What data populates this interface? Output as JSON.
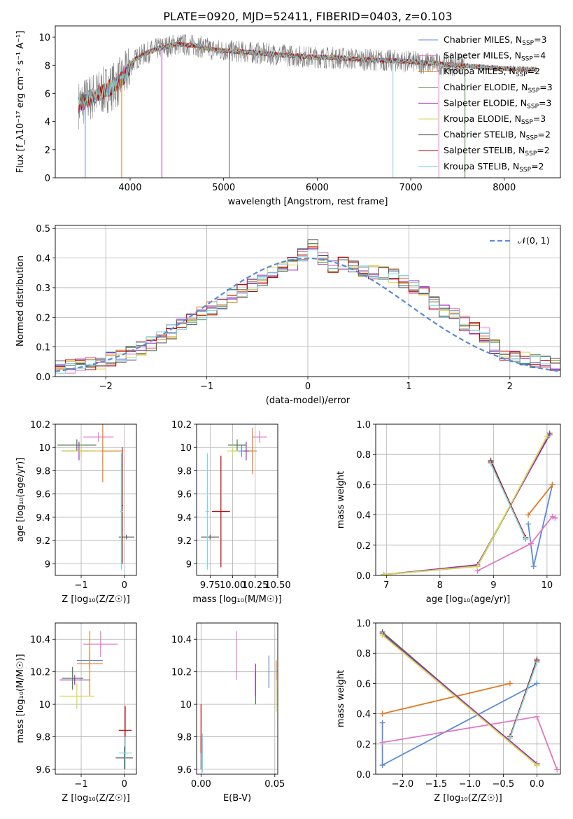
{
  "title": "PLATE=0920, MJD=52411, FIBERID=0403, z=0.103",
  "colors": [
    "#5b8bd6",
    "#e377c2",
    "#e07b1f",
    "#4a7a4a",
    "#9b30b5",
    "#d5d94c",
    "#555555",
    "#c00000",
    "#7fd6e0"
  ],
  "gray": "#808080",
  "chart_data": [
    {
      "id": "spectrum",
      "type": "line",
      "xlabel": "wavelength [Angstrom, rest frame]",
      "ylabel": "Flux [f_λ10⁻¹⁷ erg cm⁻² s⁻¹ A⁻¹]",
      "xlim": [
        3200,
        8600
      ],
      "ylim": [
        0,
        10.8
      ],
      "xticks": [
        4000,
        5000,
        6000,
        7000,
        8000
      ],
      "yticks": [
        0,
        2,
        4,
        6,
        8,
        10
      ],
      "grid": false,
      "legend_position": "top-right",
      "continuum": [
        [
          3450,
          5.2
        ],
        [
          3600,
          5.8
        ],
        [
          3750,
          6.3
        ],
        [
          3850,
          6.6
        ],
        [
          3950,
          7.3
        ],
        [
          4050,
          8.4
        ],
        [
          4150,
          8.8
        ],
        [
          4300,
          9.2
        ],
        [
          4500,
          9.5
        ],
        [
          4700,
          9.4
        ],
        [
          4900,
          9.1
        ],
        [
          5100,
          9.0
        ],
        [
          5300,
          8.9
        ],
        [
          5500,
          8.8
        ],
        [
          5700,
          8.7
        ],
        [
          5900,
          8.6
        ],
        [
          6100,
          8.55
        ],
        [
          6300,
          8.5
        ],
        [
          6500,
          8.4
        ],
        [
          6700,
          8.35
        ],
        [
          6900,
          8.3
        ],
        [
          7100,
          8.2
        ],
        [
          7300,
          8.1
        ],
        [
          7500,
          8.0
        ],
        [
          7700,
          7.9
        ],
        [
          7900,
          7.8
        ],
        [
          8100,
          7.75
        ],
        [
          8350,
          7.7
        ]
      ],
      "observed_range": [
        3450,
        7580
      ],
      "spikes": [
        3520,
        3910,
        4340,
        5060,
        6810,
        7300,
        7580
      ],
      "legend": [
        "Chabrier MILES, N_SSP=3",
        "Salpeter MILES, N_SSP=4",
        "Kroupa MILES, N_SSP=2",
        "Chabrier ELODIE, N_SSP=3",
        "Salpeter ELODIE, N_SSP=3",
        "Kroupa ELODIE, N_SSP=3",
        "Chabrier STELIB, N_SSP=2",
        "Salpeter STELIB, N_SSP=2",
        "Kroupa STELIB, N_SSP=2"
      ]
    },
    {
      "id": "residuals",
      "type": "line",
      "xlabel": "(data-model)/error",
      "ylabel": "Normed distribution",
      "xlim": [
        -2.5,
        2.5
      ],
      "ylim": [
        0,
        0.51
      ],
      "xticks": [
        -2,
        -1,
        0,
        1,
        2
      ],
      "yticks": [
        0.0,
        0.1,
        0.2,
        0.3,
        0.4,
        0.5
      ],
      "grid": true,
      "legend_position": "top-right",
      "gauss_label": "𝒩(0, 1)",
      "bin_width": 0.1,
      "bin_start": -2.5,
      "hist_base": [
        0.03,
        0.035,
        0.04,
        0.045,
        0.05,
        0.06,
        0.07,
        0.08,
        0.095,
        0.11,
        0.13,
        0.15,
        0.17,
        0.19,
        0.21,
        0.23,
        0.25,
        0.27,
        0.29,
        0.31,
        0.33,
        0.35,
        0.37,
        0.38,
        0.41,
        0.44,
        0.4,
        0.37,
        0.38,
        0.37,
        0.36,
        0.35,
        0.35,
        0.34,
        0.32,
        0.3,
        0.28,
        0.25,
        0.22,
        0.21,
        0.18,
        0.16,
        0.14,
        0.1,
        0.08,
        0.07,
        0.06,
        0.05,
        0.045,
        0.04
      ]
    },
    {
      "id": "age_vs_Z",
      "type": "scatter",
      "xlabel": "Z [log₁₀(Z/Z☉)]",
      "ylabel": "age  [log₁₀(age/yr)]",
      "xlim": [
        -1.6,
        0.28
      ],
      "ylim": [
        8.9,
        10.2
      ],
      "xticks": [
        -1,
        0
      ],
      "yticks": [
        9.0,
        9.2,
        9.4,
        9.6,
        9.8,
        10.0,
        10.2
      ],
      "grid": true,
      "points": [
        {
          "x": -1.0,
          "y": 9.97,
          "xe": 0.3,
          "ye": 0.05,
          "c": 0
        },
        {
          "x": -0.6,
          "y": 10.09,
          "xe": 0.35,
          "ye": 0.04,
          "c": 1
        },
        {
          "x": -0.5,
          "y": 9.97,
          "xe": 0.45,
          "ye": 0.27,
          "c": 2
        },
        {
          "x": -1.1,
          "y": 10.02,
          "xe": 0.45,
          "ye": 0.05,
          "c": 3
        },
        {
          "x": -1.05,
          "y": 9.97,
          "xe": 0.4,
          "ye": 0.08,
          "c": 4
        },
        {
          "x": -1.0,
          "y": 9.97,
          "xe": 0.45,
          "ye": 0.05,
          "c": 5
        },
        {
          "x": 0.05,
          "y": 9.23,
          "xe": 0.18,
          "ye": 0.02,
          "c": 6
        },
        {
          "x": -0.05,
          "y": 9.5,
          "xe": 0.02,
          "ye": 0.5,
          "c": 7
        },
        {
          "x": -0.07,
          "y": 9.45,
          "xe": 0.03,
          "ye": 0.5,
          "c": 8
        }
      ]
    },
    {
      "id": "age_vs_mass",
      "type": "scatter",
      "xlabel": "mass [log₁₀(M/M☉)]",
      "ylabel": "",
      "xlim": [
        9.6,
        10.5
      ],
      "ylim": [
        8.9,
        10.2
      ],
      "xticks": [
        9.75,
        10.0,
        10.25,
        10.5
      ],
      "xticklabels": [
        "9.75",
        "10.00",
        "10.25",
        "10.50"
      ],
      "yticks": [
        9.0,
        9.2,
        9.4,
        9.6,
        9.8,
        10.0,
        10.2
      ],
      "grid": true,
      "points": [
        {
          "x": 10.1,
          "y": 9.97,
          "xe": 0.12,
          "ye": 0.05,
          "c": 0
        },
        {
          "x": 10.3,
          "y": 10.09,
          "xe": 0.08,
          "ye": 0.05,
          "c": 1
        },
        {
          "x": 10.22,
          "y": 9.97,
          "xe": 0.05,
          "ye": 0.2,
          "c": 2
        },
        {
          "x": 10.05,
          "y": 10.02,
          "xe": 0.1,
          "ye": 0.05,
          "c": 3
        },
        {
          "x": 10.15,
          "y": 9.97,
          "xe": 0.03,
          "ye": 0.08,
          "c": 4
        },
        {
          "x": 10.0,
          "y": 9.97,
          "xe": 0.06,
          "ye": 0.05,
          "c": 5
        },
        {
          "x": 9.75,
          "y": 9.23,
          "xe": 0.1,
          "ye": 0.02,
          "c": 6
        },
        {
          "x": 9.87,
          "y": 9.45,
          "xe": 0.1,
          "ye": 0.48,
          "c": 7
        },
        {
          "x": 9.72,
          "y": 9.45,
          "xe": 0.02,
          "ye": 0.5,
          "c": 8
        }
      ]
    },
    {
      "id": "weight_vs_age",
      "type": "line",
      "xlabel": "age  [log₁₀(age/yr)]",
      "ylabel": "mass weight",
      "xlim": [
        6.8,
        10.25
      ],
      "ylim": [
        0.0,
        1.0
      ],
      "xticks": [
        7,
        8,
        9,
        10
      ],
      "yticks": [
        0.0,
        0.2,
        0.4,
        0.6,
        0.8,
        1.0
      ],
      "grid": true,
      "series": [
        {
          "c": 0,
          "x": [
            9.65,
            9.75,
            10.1
          ],
          "y": [
            0.34,
            0.06,
            0.6
          ]
        },
        {
          "c": 1,
          "x": [
            8.7,
            9.7,
            10.1,
            10.15
          ],
          "y": [
            0.03,
            0.21,
            0.39,
            0.38
          ]
        },
        {
          "c": 2,
          "x": [
            9.65,
            10.1
          ],
          "y": [
            0.4,
            0.6
          ]
        },
        {
          "c": 3,
          "x": [
            6.95,
            8.7,
            10.05
          ],
          "y": [
            0.005,
            0.06,
            0.94
          ]
        },
        {
          "c": 4,
          "x": [
            6.95,
            8.7,
            10.05
          ],
          "y": [
            0.005,
            0.07,
            0.93
          ]
        },
        {
          "c": 5,
          "x": [
            6.95,
            8.7,
            10.0
          ],
          "y": [
            0.005,
            0.06,
            0.92
          ]
        },
        {
          "c": 6,
          "x": [
            8.95,
            9.6
          ],
          "y": [
            0.76,
            0.24
          ]
        },
        {
          "c": 7,
          "x": [
            8.95,
            9.6
          ],
          "y": [
            0.75,
            0.25
          ]
        },
        {
          "c": 8,
          "x": [
            8.95,
            9.6
          ],
          "y": [
            0.74,
            0.24
          ]
        }
      ]
    },
    {
      "id": "mass_vs_Z",
      "type": "scatter",
      "xlabel": "Z [log₁₀(Z/Z☉)]",
      "ylabel": "mass [log₁₀(M/M☉)]",
      "xlim": [
        -1.6,
        0.28
      ],
      "ylim": [
        9.57,
        10.5
      ],
      "xticks": [
        -1,
        0
      ],
      "yticks": [
        9.6,
        9.8,
        10.0,
        10.2,
        10.4
      ],
      "grid": true,
      "points": [
        {
          "x": -0.8,
          "y": 10.27,
          "xe": 0.3,
          "ye": 0.05,
          "c": 0
        },
        {
          "x": -0.55,
          "y": 10.37,
          "xe": 0.4,
          "ye": 0.08,
          "c": 1
        },
        {
          "x": -0.8,
          "y": 10.25,
          "xe": 0.3,
          "ye": 0.2,
          "c": 2
        },
        {
          "x": -1.2,
          "y": 10.16,
          "xe": 0.25,
          "ye": 0.07,
          "c": 3
        },
        {
          "x": -1.15,
          "y": 10.15,
          "xe": 0.35,
          "ye": 0.03,
          "c": 4
        },
        {
          "x": -1.1,
          "y": 10.05,
          "xe": 0.4,
          "ye": 0.08,
          "c": 5
        },
        {
          "x": 0.0,
          "y": 9.67,
          "xe": 0.2,
          "ye": 0.07,
          "c": 6
        },
        {
          "x": 0.02,
          "y": 9.84,
          "xe": 0.15,
          "ye": 0.15,
          "c": 7
        },
        {
          "x": 0.02,
          "y": 9.7,
          "xe": 0.15,
          "ye": 0.1,
          "c": 8
        }
      ]
    },
    {
      "id": "mass_vs_EBV",
      "type": "scatter",
      "xlabel": "E(B-V)",
      "ylabel": "",
      "xlim": [
        -0.003,
        0.052
      ],
      "ylim": [
        9.57,
        10.5
      ],
      "xticks": [
        0.0,
        0.05
      ],
      "xticklabels": [
        "0.00",
        "0.05"
      ],
      "yticks": [
        9.6,
        9.8,
        10.0,
        10.2,
        10.4
      ],
      "grid": true,
      "points": [
        {
          "x": 0.046,
          "y": 10.2,
          "ye": 0.1,
          "c": 0
        },
        {
          "x": 0.024,
          "y": 10.3,
          "ye": 0.15,
          "c": 1
        },
        {
          "x": 0.051,
          "y": 10.15,
          "ye": 0.12,
          "c": 2
        },
        {
          "x": 0.037,
          "y": 10.1,
          "ye": 0.1,
          "c": 3
        },
        {
          "x": 0.037,
          "y": 10.15,
          "ye": 0.1,
          "c": 4
        },
        {
          "x": 0.051,
          "y": 10.05,
          "ye": 0.1,
          "c": 5
        },
        {
          "x": 0.0,
          "y": 9.7,
          "ye": 0.1,
          "c": 6
        },
        {
          "x": 0.0,
          "y": 9.85,
          "ye": 0.15,
          "c": 7
        },
        {
          "x": 0.001,
          "y": 9.7,
          "ye": 0.12,
          "c": 8
        }
      ]
    },
    {
      "id": "weight_vs_Z",
      "type": "line",
      "xlabel": "Z [log₁₀(Z/Z☉)]",
      "ylabel": "mass weight",
      "xlim": [
        -2.4,
        0.35
      ],
      "ylim": [
        0.0,
        1.0
      ],
      "xticks": [
        -2.0,
        -1.5,
        -1.0,
        -0.5,
        0.0
      ],
      "xticklabels": [
        "−2.0",
        "−1.5",
        "−1.0",
        "−0.5",
        "0.0"
      ],
      "yticks": [
        0.0,
        0.2,
        0.4,
        0.6,
        0.8,
        1.0
      ],
      "grid": true,
      "series": [
        {
          "c": 0,
          "x": [
            -2.3,
            -2.3,
            0.0,
            0.0
          ],
          "y": [
            0.34,
            0.06,
            0.6,
            0.6
          ]
        },
        {
          "c": 1,
          "x": [
            -2.3,
            0.0,
            0.3
          ],
          "y": [
            0.21,
            0.38,
            0.03
          ]
        },
        {
          "c": 2,
          "x": [
            -2.3,
            -0.4
          ],
          "y": [
            0.4,
            0.6
          ]
        },
        {
          "c": 3,
          "x": [
            -2.3,
            0.0
          ],
          "y": [
            0.94,
            0.06
          ]
        },
        {
          "c": 4,
          "x": [
            -2.3,
            0.0
          ],
          "y": [
            0.93,
            0.07
          ]
        },
        {
          "c": 5,
          "x": [
            -2.3,
            0.0
          ],
          "y": [
            0.92,
            0.06
          ]
        },
        {
          "c": 6,
          "x": [
            -0.4,
            0.0
          ],
          "y": [
            0.24,
            0.76
          ]
        },
        {
          "c": 7,
          "x": [
            -0.4,
            0.0
          ],
          "y": [
            0.25,
            0.75
          ]
        },
        {
          "c": 8,
          "x": [
            -0.4,
            0.0
          ],
          "y": [
            0.24,
            0.74
          ]
        }
      ]
    }
  ]
}
